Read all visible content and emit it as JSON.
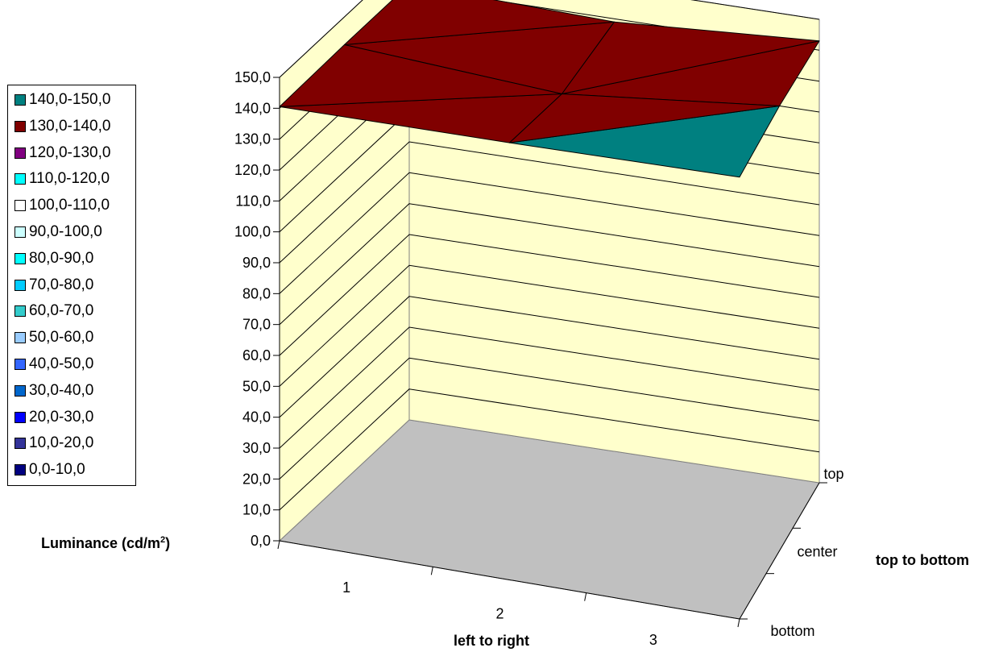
{
  "chart_data": {
    "type": "surface",
    "yaxis": {
      "label_prefix": "Luminance (cd/m",
      "label_sup": "2",
      "label_suffix": ")",
      "min": 0,
      "max": 150,
      "step": 10,
      "ticks": [
        "0,0",
        "10,0",
        "20,0",
        "30,0",
        "40,0",
        "50,0",
        "60,0",
        "70,0",
        "80,0",
        "90,0",
        "100,0",
        "110,0",
        "120,0",
        "130,0",
        "140,0",
        "150,0"
      ]
    },
    "xaxis": {
      "label": "left to right",
      "categories": [
        "1",
        "2",
        "3"
      ]
    },
    "zaxis": {
      "label": "top to bottom",
      "categories": [
        "bottom",
        "center",
        "top"
      ]
    },
    "grid": true,
    "legend_position": "left",
    "legend": [
      {
        "label": "140,0-150,0",
        "color": "#008080"
      },
      {
        "label": "130,0-140,0",
        "color": "#800000"
      },
      {
        "label": "120,0-130,0",
        "color": "#800080"
      },
      {
        "label": "110,0-120,0",
        "color": "#00ffff"
      },
      {
        "label": "100,0-110,0",
        "color": "#ffffff"
      },
      {
        "label": "90,0-100,0",
        "color": "#ccffff"
      },
      {
        "label": "80,0-90,0",
        "color": "#00ffff"
      },
      {
        "label": "70,0-80,0",
        "color": "#00ccff"
      },
      {
        "label": "60,0-70,0",
        "color": "#33cccc"
      },
      {
        "label": "50,0-60,0",
        "color": "#99ccff"
      },
      {
        "label": "40,0-50,0",
        "color": "#3366ff"
      },
      {
        "label": "30,0-40,0",
        "color": "#0066cc"
      },
      {
        "label": "20,0-30,0",
        "color": "#0000ff"
      },
      {
        "label": "10,0-20,0",
        "color": "#333399"
      },
      {
        "label": "0,0-10,0",
        "color": "#000080"
      }
    ],
    "surface": {
      "rows": [
        "bottom",
        "center",
        "top"
      ],
      "columns": [
        "1",
        "2",
        "3"
      ],
      "values": [
        [
          140.5,
          141.5,
          143
        ],
        [
          141,
          136.5,
          144
        ],
        [
          141,
          139,
          143
        ]
      ]
    },
    "colors": {
      "wall": "#ffffcc",
      "floor": "#c0c0c0",
      "surface_main": "#008080",
      "surface_alt": "#800000"
    }
  }
}
